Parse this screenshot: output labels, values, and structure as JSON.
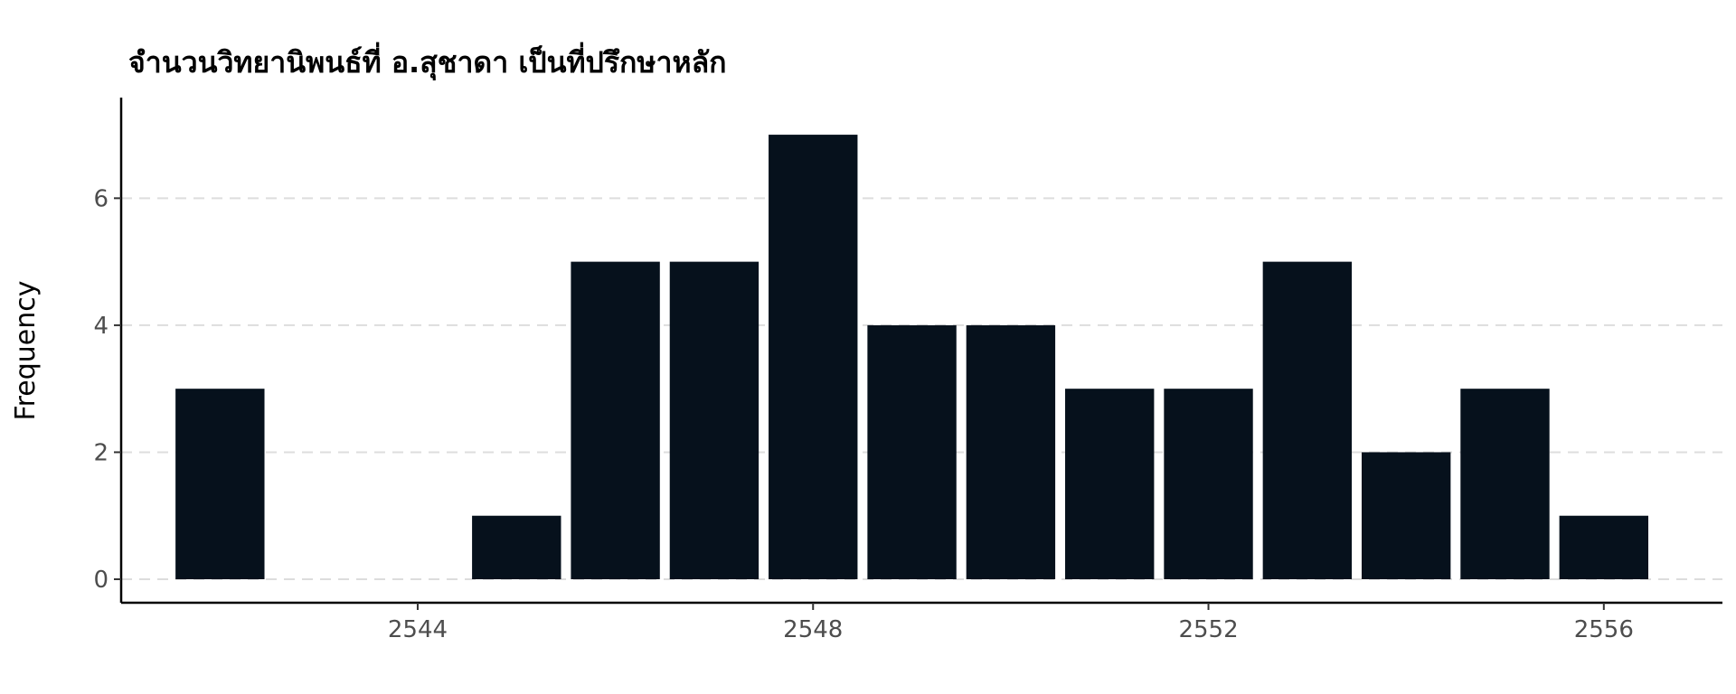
{
  "chart_data": {
    "type": "bar",
    "title": "จำนวนวิทยานิพนธ์ที่ อ.สุชาดา เป็นที่ปรึกษาหลัก",
    "xlabel": "",
    "ylabel": "Frequency",
    "x": [
      2542,
      2545,
      2546,
      2547,
      2548,
      2549,
      2550,
      2551,
      2552,
      2553,
      2554,
      2555,
      2556
    ],
    "values": [
      3,
      1,
      5,
      5,
      7,
      4,
      4,
      3,
      3,
      5,
      2,
      3,
      1
    ],
    "xlim": [
      2541,
      2557.2
    ],
    "ylim": [
      0,
      7.3
    ],
    "x_ticks": [
      "2544",
      "2548",
      "2552",
      "2556"
    ],
    "y_ticks": [
      "0",
      "2",
      "4",
      "6"
    ],
    "grid": "horizontal dashed",
    "bar_color": "#06111c",
    "grid_color": "#dddddd"
  }
}
